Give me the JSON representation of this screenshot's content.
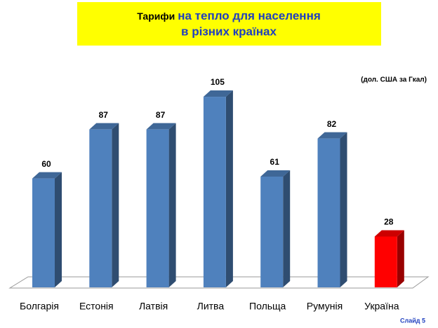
{
  "chart_data": {
    "type": "bar3d",
    "title": [
      "Тарифи",
      "на тепло для населення",
      "в різних країнах"
    ],
    "unit_note": "(дол. США за Гкал)",
    "categories": [
      "Болгарія",
      "Естонія",
      "Латвія",
      "Литва",
      "Польща",
      "Румунія",
      "Україна"
    ],
    "values": [
      60,
      87,
      87,
      105,
      61,
      82,
      28
    ],
    "colors": [
      "#4f81bd",
      "#4f81bd",
      "#4f81bd",
      "#4f81bd",
      "#4f81bd",
      "#4f81bd",
      "#ff0000"
    ],
    "footer": "Слайд 5"
  }
}
